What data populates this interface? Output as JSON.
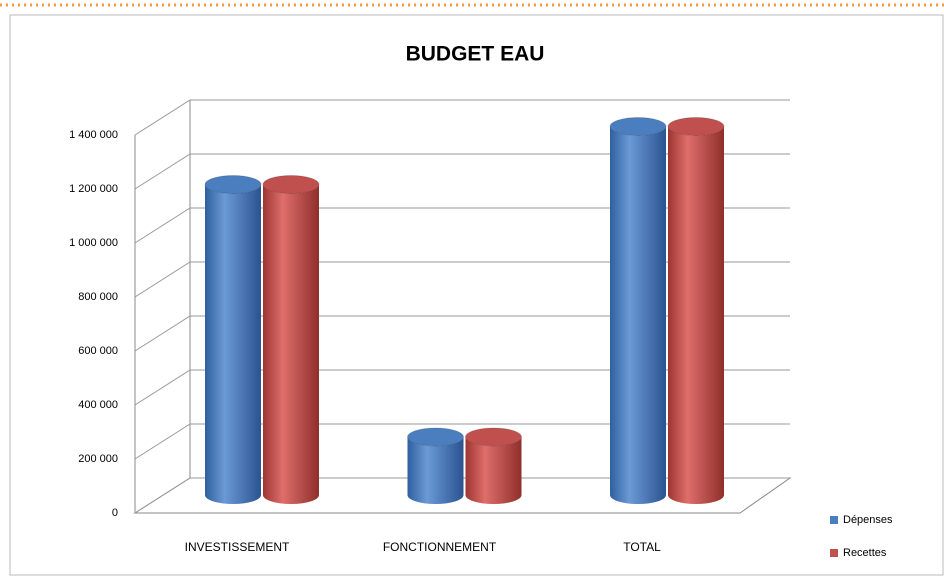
{
  "chart_data": {
    "type": "bar3d",
    "title": "BUDGET EAU",
    "categories": [
      "INVESTISSEMENT",
      "FONCTIONNEMENT",
      "TOTAL"
    ],
    "series": [
      {
        "name": "Dépenses",
        "color": "#4a7ebf",
        "values": [
          1150000,
          215000,
          1365000
        ]
      },
      {
        "name": "Recettes",
        "color": "#c0504d",
        "values": [
          1150000,
          215000,
          1365000
        ]
      }
    ],
    "ylim": [
      0,
      1400000
    ],
    "yticks": [
      0,
      {
        "value": 200000,
        "label": "200 000"
      },
      {
        "value": 400000,
        "label": "400 000"
      },
      {
        "value": 600000,
        "label": "600 000"
      },
      {
        "value": 800000,
        "label": "800 000"
      },
      {
        "value": 1000000,
        "label": "1 000 000"
      },
      {
        "value": 1200000,
        "label": "1 200 000"
      },
      {
        "value": 1400000,
        "label": "1 400 000"
      }
    ],
    "grid": true,
    "legend": "right"
  }
}
